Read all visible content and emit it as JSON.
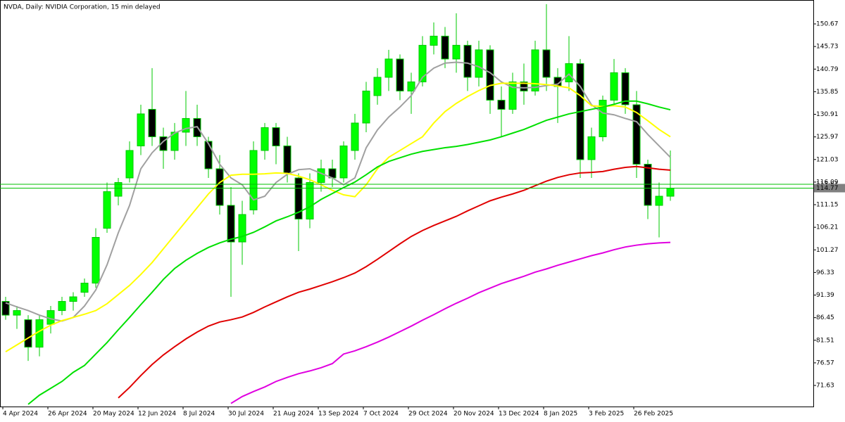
{
  "chart_data": {
    "type": "candlestick",
    "title": "NVDA, Daily:  NVIDIA Corporation, 15 min delayed",
    "categories": [
      "4 Apr 2024",
      null,
      null,
      null,
      "26 Apr 2024",
      null,
      null,
      null,
      "20 May 2024",
      null,
      null,
      null,
      "12 Jun 2024",
      null,
      null,
      null,
      "8 Jul 2024",
      null,
      null,
      null,
      "30 Jul 2024",
      null,
      null,
      null,
      "21 Aug 2024",
      null,
      null,
      null,
      "13 Sep 2024",
      null,
      null,
      null,
      "7 Oct 2024",
      null,
      null,
      null,
      "29 Oct 2024",
      null,
      null,
      null,
      "20 Nov 2024",
      null,
      null,
      null,
      "13 Dec 2024",
      null,
      null,
      null,
      "8 Jan 2025",
      null,
      null,
      null,
      "3 Feb 2025",
      null,
      null,
      null,
      "26 Feb 2025",
      null,
      null,
      null
    ],
    "open": [
      90,
      87,
      86,
      80,
      85,
      88,
      90,
      92,
      94,
      106,
      113,
      117,
      124,
      132,
      126,
      123,
      127,
      130,
      125,
      119,
      111,
      103,
      110,
      123,
      128,
      124,
      117,
      108,
      116,
      119,
      117,
      123,
      129,
      135,
      139,
      143,
      136,
      138,
      146,
      148,
      143,
      146,
      139,
      145,
      134,
      132,
      138,
      136,
      145,
      139,
      138,
      142,
      121,
      126,
      134,
      140,
      133,
      120,
      111,
      113
    ],
    "high": [
      91,
      89,
      87,
      87,
      89,
      91,
      92,
      95,
      106,
      116,
      117,
      125,
      133,
      141,
      128,
      129,
      136,
      133,
      126,
      122,
      115,
      112,
      125,
      129,
      129,
      126,
      118,
      118,
      121,
      121,
      125,
      131,
      138,
      141,
      145,
      144,
      140,
      148,
      151,
      150,
      153,
      147,
      147,
      146,
      137,
      140,
      142,
      147,
      155,
      141,
      148,
      143,
      128,
      135,
      143,
      141,
      136,
      121,
      116,
      123
    ],
    "low": [
      86,
      84,
      77,
      78,
      83,
      87,
      88,
      91,
      93,
      105,
      111,
      116,
      122,
      124,
      119,
      121,
      124,
      124,
      117,
      109,
      91,
      98,
      109,
      121,
      120,
      116,
      101,
      106,
      114,
      115,
      116,
      121,
      127,
      133,
      136,
      134,
      131,
      137,
      144,
      141,
      140,
      136,
      137,
      131,
      126,
      131,
      133,
      135,
      136,
      129,
      136,
      117,
      117,
      125,
      133,
      131,
      117,
      108,
      104,
      112
    ],
    "close": [
      87,
      88,
      80,
      86,
      88,
      90,
      91,
      94,
      104,
      114,
      116,
      123,
      131,
      126,
      123,
      127,
      130,
      126,
      119,
      111,
      103,
      109,
      123,
      128,
      124,
      118,
      108,
      116,
      119,
      117,
      124,
      129,
      136,
      139,
      143,
      136,
      138,
      146,
      148,
      143,
      146,
      139,
      145,
      134,
      132,
      138,
      136,
      145,
      139,
      137,
      142,
      121,
      126,
      134,
      140,
      133,
      120,
      111,
      113,
      114.77
    ],
    "up_color": "#00ff00",
    "down_color": "#000000",
    "wick_color": "#00c800",
    "series": [
      {
        "color": "#a0a0a0",
        "values": [
          89.7,
          88.8,
          88,
          87,
          86.2,
          85.7,
          86.5,
          89,
          92.5,
          98,
          105,
          111,
          119,
          122.5,
          125,
          126.8,
          127.8,
          128.2,
          124.5,
          120,
          117,
          115.5,
          112.2,
          113,
          116,
          117.8,
          118.8,
          119,
          118,
          117,
          115.5,
          117,
          123.6,
          127.5,
          130.3,
          132.5,
          135,
          139,
          141,
          142.1,
          142.3,
          142.1,
          141.3,
          140,
          138,
          136.8,
          136.7,
          136.8,
          137.2,
          137.5,
          139.7,
          137,
          133,
          131.2,
          130.8,
          130,
          129.3,
          126.5,
          124,
          121.5
        ]
      },
      {
        "color": "#ffff00",
        "values": [
          79,
          80.5,
          82,
          83.5,
          84.8,
          85.8,
          86.5,
          87.2,
          88,
          89.5,
          91.5,
          93.5,
          95.9,
          98.5,
          101.5,
          104.5,
          107.5,
          110.5,
          113.5,
          116,
          117.6,
          117.8,
          117.8,
          117.9,
          118.1,
          118,
          117.4,
          116.6,
          115.5,
          114.3,
          113.3,
          112.9,
          115.5,
          119,
          121.5,
          123,
          124.5,
          126,
          129,
          131.5,
          133.3,
          134.8,
          136.1,
          137.2,
          137.7,
          137.7,
          137.7,
          137.6,
          137.4,
          137.1,
          136.7,
          135,
          132.8,
          132.6,
          132.8,
          132.5,
          131.3,
          129.5,
          127.6,
          126
        ]
      },
      {
        "color": "#00e000",
        "values": [
          null,
          null,
          67.5,
          69.5,
          71,
          72.5,
          74.5,
          76,
          78.5,
          81,
          83.8,
          86.5,
          89.3,
          92,
          94.8,
          97.2,
          99,
          100.5,
          101.8,
          102.8,
          103.6,
          104.2,
          105.1,
          106.3,
          107.6,
          108.5,
          109.5,
          110.7,
          112.3,
          113.6,
          114.9,
          116.1,
          117.7,
          119.4,
          120.6,
          121.4,
          122.2,
          122.8,
          123.2,
          123.6,
          123.9,
          124.3,
          124.8,
          125.3,
          126,
          126.8,
          127.6,
          128.6,
          129.6,
          130.3,
          131,
          131.5,
          132,
          132.5,
          133.1,
          133.8,
          133.8,
          133.2,
          132.5,
          131.9
        ]
      },
      {
        "color": "#e00000",
        "values": [
          null,
          null,
          null,
          null,
          null,
          null,
          null,
          null,
          null,
          null,
          68.9,
          71.2,
          73.8,
          76.2,
          78.3,
          80.1,
          81.8,
          83.3,
          84.6,
          85.5,
          86,
          86.6,
          87.6,
          88.8,
          89.9,
          91,
          92,
          92.7,
          93.5,
          94.3,
          95.2,
          96.2,
          97.6,
          99.2,
          100.9,
          102.6,
          104.2,
          105.5,
          106.6,
          107.6,
          108.6,
          109.8,
          110.9,
          112,
          112.8,
          113.5,
          114.3,
          115.3,
          116.3,
          117.1,
          117.7,
          118.1,
          118.2,
          118.4,
          118.9,
          119.3,
          119.5,
          119.2,
          118.9,
          118.7
        ]
      },
      {
        "color": "#e000e0",
        "values": [
          null,
          null,
          null,
          null,
          null,
          null,
          null,
          null,
          null,
          null,
          null,
          null,
          null,
          null,
          null,
          null,
          null,
          null,
          null,
          null,
          67.7,
          69.2,
          70.3,
          71.3,
          72.5,
          73.4,
          74.2,
          74.8,
          75.5,
          76.4,
          78.5,
          79.2,
          80.1,
          81.1,
          82.2,
          83.4,
          84.6,
          85.9,
          87.1,
          88.4,
          89.6,
          90.7,
          91.9,
          92.9,
          93.9,
          94.7,
          95.5,
          96.4,
          97.1,
          97.9,
          98.6,
          99.3,
          100,
          100.6,
          101.3,
          101.9,
          102.3,
          102.6,
          102.8,
          102.9
        ]
      }
    ],
    "ylim": [
      67.02,
      155.9
    ],
    "yticks": [
      71.63,
      76.57,
      81.51,
      86.45,
      91.39,
      96.33,
      101.27,
      106.21,
      111.15,
      116.09,
      121.03,
      125.97,
      130.91,
      135.85,
      140.79,
      145.73,
      150.67
    ],
    "ask": 115.61,
    "ask_color": "#00c000",
    "bid": 114.77,
    "bid_color": "#00c000",
    "bid_label_bg": "#808080"
  }
}
